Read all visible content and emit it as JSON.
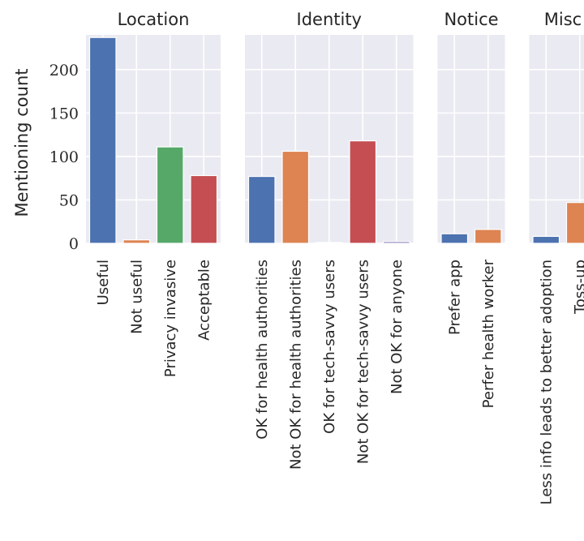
{
  "chart_data": {
    "type": "bar",
    "ylabel": "Mentioning count",
    "ylim": [
      0,
      240
    ],
    "yticks": [
      "0",
      "50",
      "100",
      "150",
      "200"
    ],
    "grid": true,
    "legend": "none",
    "panels": [
      {
        "title": "Location",
        "categories": [
          "Useful",
          "Not useful",
          "Privacy invasive",
          "Acceptable"
        ],
        "values": [
          237,
          4,
          111,
          78
        ],
        "colors": [
          "#4c72b0",
          "#dd8452",
          "#55a868",
          "#c44e52"
        ]
      },
      {
        "title": "Identity",
        "categories": [
          "OK for health authorities",
          "Not OK for health authorities",
          "OK for tech-savvy users",
          "Not OK for tech-savvy users",
          "Not OK for anyone"
        ],
        "values": [
          77,
          106,
          1,
          118,
          2
        ],
        "colors": [
          "#4c72b0",
          "#dd8452",
          "#55a868",
          "#c44e52",
          "#8172b3"
        ]
      },
      {
        "title": "Notice",
        "categories": [
          "Prefer app",
          "Perfer health worker"
        ],
        "values": [
          11,
          16
        ],
        "colors": [
          "#4c72b0",
          "#dd8452"
        ]
      },
      {
        "title": "Misc",
        "categories": [
          "Less info leads to better adoption",
          "Toss-up"
        ],
        "values": [
          8,
          47
        ],
        "colors": [
          "#4c72b0",
          "#dd8452"
        ]
      }
    ]
  }
}
